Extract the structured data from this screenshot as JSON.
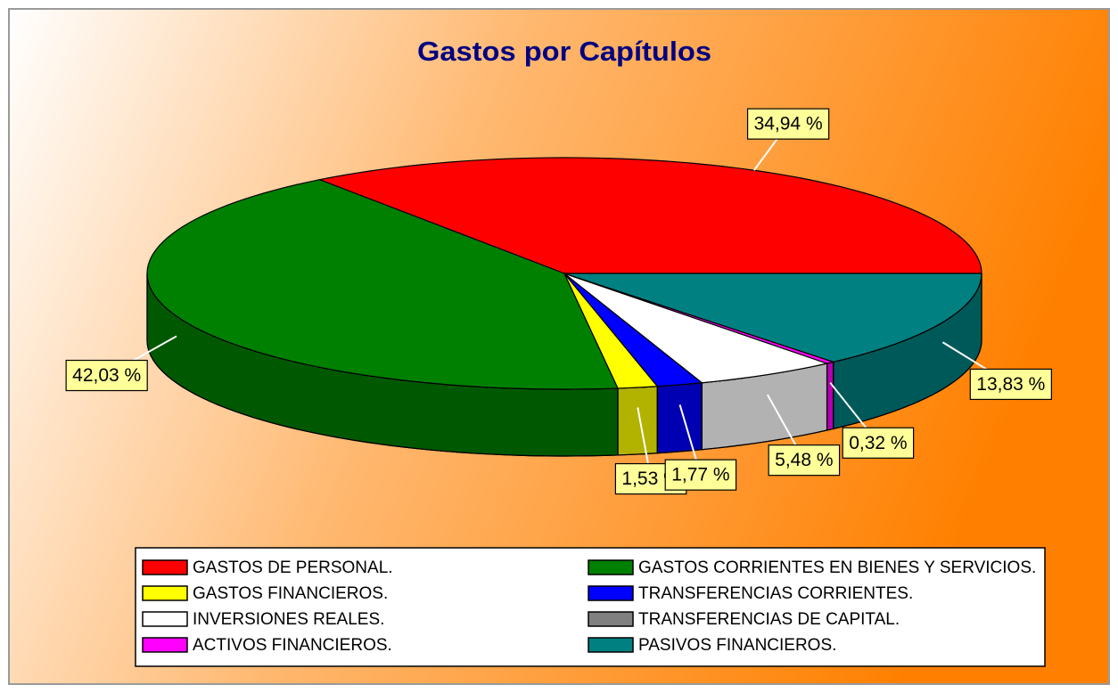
{
  "chart_data": {
    "type": "pie3d",
    "title": "Gastos por Capítulos",
    "categories": [
      "GASTOS DE PERSONAL.",
      "GASTOS CORRIENTES EN BIENES Y SERVICIOS.",
      "GASTOS FINANCIEROS.",
      "TRANSFERENCIAS CORRIENTES.",
      "INVERSIONES REALES.",
      "TRANSFERENCIAS DE CAPITAL.",
      "ACTIVOS FINANCIEROS.",
      "PASIVOS FINANCIEROS."
    ],
    "values": [
      34.94,
      42.03,
      1.53,
      1.77,
      5.48,
      0,
      0.32,
      13.83
    ],
    "value_labels": [
      "34,94 %",
      "42,03 %",
      "1,53 %",
      "1,77 %",
      "5,48 %",
      null,
      "0,32 %",
      "13,83 %"
    ],
    "colors": [
      "#ff0000",
      "#008000",
      "#ffff00",
      "#0000ff",
      "#ffffff",
      "#808080",
      "#ff00ff",
      "#008080"
    ],
    "legend": "bottom"
  }
}
